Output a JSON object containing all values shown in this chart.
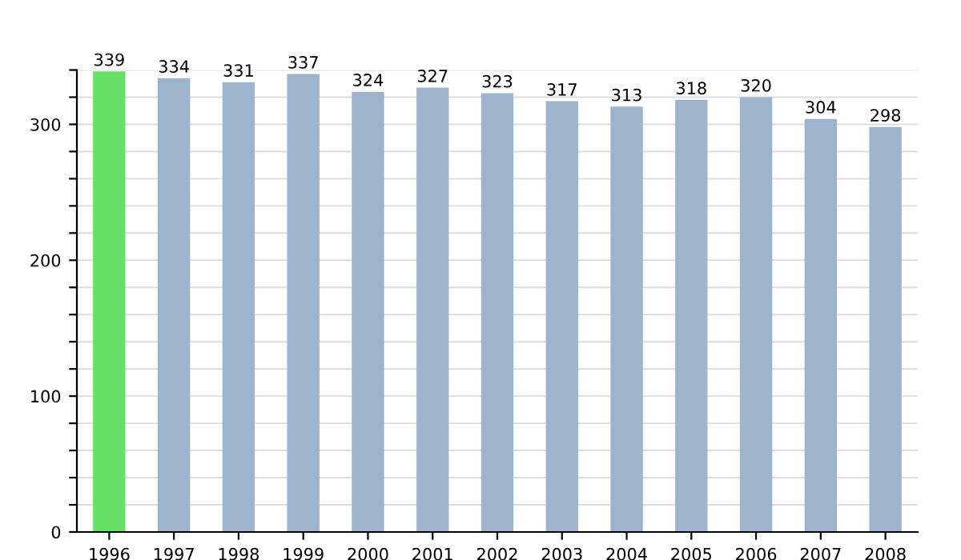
{
  "chart_data": {
    "type": "bar",
    "categories": [
      "1996",
      "1997",
      "1998",
      "1999",
      "2000",
      "2001",
      "2002",
      "2003",
      "2004",
      "2005",
      "2006",
      "2007",
      "2008"
    ],
    "values": [
      339,
      334,
      331,
      337,
      324,
      327,
      323,
      317,
      313,
      318,
      320,
      304,
      298
    ],
    "colors": [
      "#66e066",
      "#9eb4cc",
      "#9eb4cc",
      "#9eb4cc",
      "#9eb4cc",
      "#9eb4cc",
      "#9eb4cc",
      "#9eb4cc",
      "#9eb4cc",
      "#9eb4cc",
      "#9eb4cc",
      "#9eb4cc",
      "#9eb4cc"
    ],
    "ylim": [
      0,
      340
    ],
    "yticks": [
      0,
      {
        "value": 20,
        "label": null
      },
      {
        "value": 40,
        "label": null
      },
      {
        "value": 60,
        "label": null
      },
      {
        "value": 80,
        "label": null
      },
      100,
      {
        "value": 120,
        "label": null
      },
      {
        "value": 140,
        "label": null
      },
      {
        "value": 160,
        "label": null
      },
      {
        "value": 180,
        "label": null
      },
      200,
      {
        "value": 220,
        "label": null
      },
      {
        "value": 240,
        "label": null
      },
      {
        "value": 260,
        "label": null
      },
      {
        "value": 280,
        "label": null
      },
      300,
      {
        "value": 320,
        "label": null
      },
      {
        "value": 340,
        "label": null
      }
    ],
    "grid": "y",
    "data_labels": true,
    "legend": false
  }
}
